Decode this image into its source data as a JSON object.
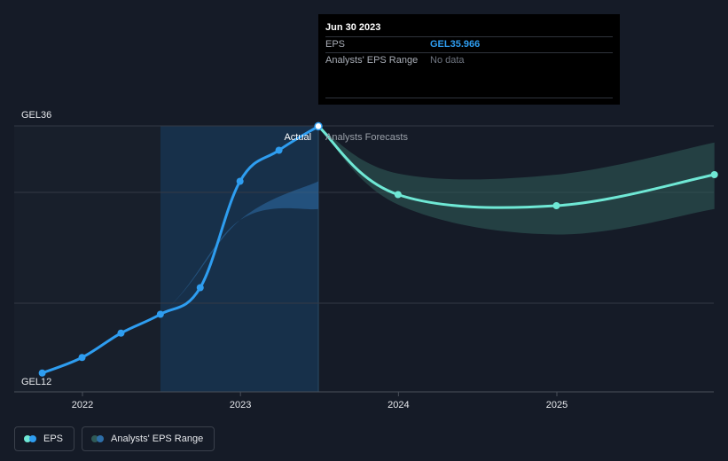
{
  "colors": {
    "background": "#151b27",
    "eps_line": "#2e9df0",
    "forecast_line": "#6fe8d5",
    "range_past": "#2d6ea8",
    "range_forecast": "#2f5a57",
    "actual_region": "#17304a"
  },
  "tooltip": {
    "date": "Jun 30 2023",
    "eps_label": "EPS",
    "eps_value": "GEL35.966",
    "range_label": "Analysts' EPS Range",
    "range_value": "No data"
  },
  "chart_data": {
    "type": "line",
    "ylabels": [
      "GEL36",
      "GEL12"
    ],
    "x_ticks": [
      "2022",
      "2023",
      "2024",
      "2025"
    ],
    "region_labels": {
      "actual": "Actual",
      "forecast": "Analysts Forecasts"
    },
    "ylim": [
      12,
      36
    ],
    "grid": true,
    "series": [
      {
        "name": "EPS",
        "x": [
          "2021-09-30",
          "2021-12-31",
          "2022-03-31",
          "2022-06-30",
          "2022-09-30",
          "2022-12-31",
          "2023-03-31",
          "2023-06-30"
        ],
        "values": [
          13.7,
          15.1,
          17.3,
          19.0,
          21.4,
          31.0,
          33.8,
          35.966
        ]
      },
      {
        "name": "Analysts Forecasts",
        "x": [
          "2023-06-30",
          "2023-12-31",
          "2024-12-31",
          "2025-12-31"
        ],
        "values": [
          35.966,
          29.8,
          28.8,
          31.6
        ]
      }
    ],
    "range_bands": [
      {
        "name": "Analysts' EPS Range",
        "x": [
          "2021-09-30",
          "2022-06-30",
          "2022-12-31",
          "2023-06-30"
        ],
        "low": [
          13.7,
          19.0,
          27.5,
          28.5
        ],
        "high": [
          13.7,
          19.0,
          27.5,
          31.0
        ]
      },
      {
        "name": "Analysts' EPS Range",
        "x": [
          "2023-06-30",
          "2023-12-31",
          "2024-12-31",
          "2025-12-31"
        ],
        "low": [
          35.966,
          28.9,
          26.2,
          28.5
        ],
        "high": [
          35.966,
          31.7,
          31.6,
          34.5
        ]
      }
    ]
  },
  "legend": {
    "eps_label": "EPS",
    "range_label": "Analysts' EPS Range"
  }
}
